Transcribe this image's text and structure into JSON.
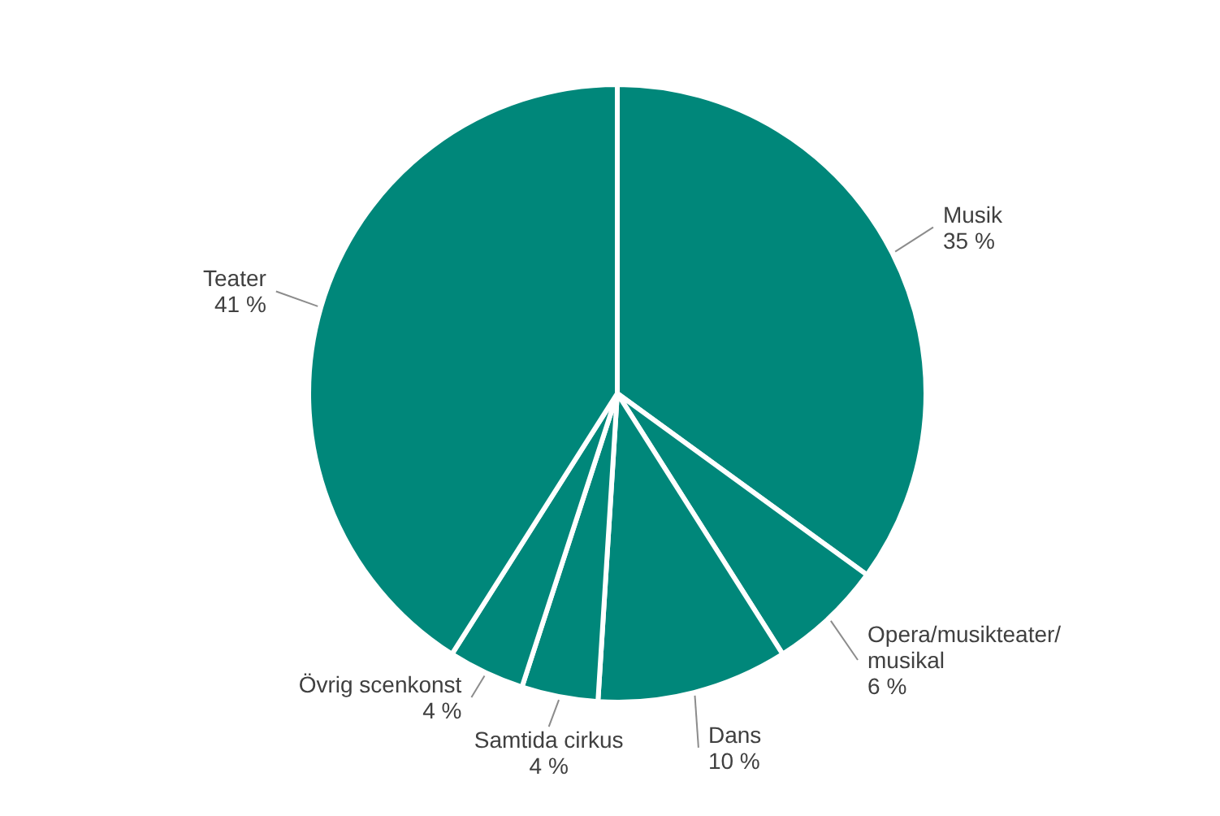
{
  "chart_data": {
    "type": "pie",
    "categories": [
      "Musik",
      "Opera/musikteater/musikal",
      "Dans",
      "Samtida cirkus",
      "Övrig scenkonst",
      "Teater"
    ],
    "values": [
      35,
      6,
      10,
      4,
      4,
      41
    ],
    "value_labels": [
      "35 %",
      "6 %",
      "10 %",
      "4 %",
      "4 %",
      "41 %"
    ],
    "colors": [
      "#00877a",
      "#00877a",
      "#00877a",
      "#00877a",
      "#00877a",
      "#00877a"
    ]
  }
}
